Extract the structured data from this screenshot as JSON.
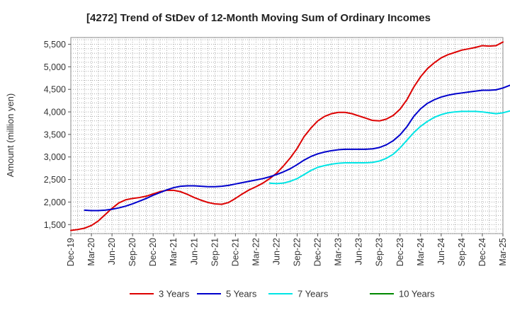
{
  "chart_data": {
    "type": "line",
    "title": "[4272]  Trend of StDev of 12-Month Moving Sum of Ordinary Incomes",
    "xlabel": "",
    "ylabel": "Amount (million yen)",
    "ylim": [
      1300,
      5650
    ],
    "yticks": [
      1500,
      2000,
      2500,
      3000,
      3500,
      4000,
      4500,
      5000,
      5500
    ],
    "ytick_labels": [
      "1,500",
      "2,000",
      "2,500",
      "3,000",
      "3,500",
      "4,000",
      "4,500",
      "5,000",
      "5,500"
    ],
    "x_range_months": [
      0,
      63
    ],
    "xticks": [
      0,
      3,
      6,
      9,
      12,
      15,
      18,
      21,
      24,
      27,
      30,
      33,
      36,
      39,
      42,
      45,
      48,
      51,
      54,
      57,
      60,
      63
    ],
    "xtick_labels": [
      "Dec-19",
      "Mar-20",
      "Jun-20",
      "Sep-20",
      "Dec-20",
      "Mar-21",
      "Jun-21",
      "Sep-21",
      "Dec-21",
      "Mar-22",
      "Jun-22",
      "Sep-22",
      "Dec-22",
      "Mar-23",
      "Jun-23",
      "Sep-23",
      "Dec-23",
      "Mar-24",
      "Jun-24",
      "Sep-24",
      "Dec-24",
      "Mar-25"
    ],
    "grid": true,
    "legend_position": "bottom",
    "series": [
      {
        "name": "3 Years",
        "color": "#dd0000",
        "start_month": 0,
        "values": [
          1370,
          1390,
          1420,
          1480,
          1580,
          1720,
          1860,
          1980,
          2050,
          2080,
          2100,
          2130,
          2180,
          2230,
          2260,
          2260,
          2230,
          2170,
          2100,
          2040,
          1990,
          1960,
          1950,
          1990,
          2080,
          2180,
          2270,
          2340,
          2420,
          2520,
          2640,
          2800,
          2980,
          3190,
          3450,
          3640,
          3800,
          3900,
          3960,
          3990,
          3990,
          3960,
          3910,
          3860,
          3810,
          3800,
          3840,
          3920,
          4060,
          4270,
          4550,
          4780,
          4960,
          5090,
          5200,
          5270,
          5320,
          5370,
          5400,
          5430,
          5470,
          5460,
          5470,
          5550
        ]
      },
      {
        "name": "5 Years",
        "color": "#0000cc",
        "start_month": 2,
        "values": [
          1820,
          1810,
          1810,
          1820,
          1840,
          1870,
          1910,
          1960,
          2020,
          2080,
          2150,
          2210,
          2270,
          2320,
          2350,
          2360,
          2360,
          2350,
          2340,
          2340,
          2350,
          2370,
          2400,
          2430,
          2460,
          2490,
          2520,
          2560,
          2610,
          2670,
          2740,
          2830,
          2930,
          3010,
          3070,
          3110,
          3140,
          3160,
          3170,
          3170,
          3170,
          3170,
          3180,
          3210,
          3270,
          3360,
          3490,
          3670,
          3900,
          4070,
          4190,
          4270,
          4330,
          4370,
          4400,
          4420,
          4440,
          4460,
          4480,
          4480,
          4490,
          4530,
          4590
        ]
      },
      {
        "name": "7 Years",
        "color": "#00e5e5",
        "start_month": 29,
        "values": [
          2420,
          2410,
          2420,
          2460,
          2520,
          2610,
          2700,
          2770,
          2810,
          2840,
          2860,
          2870,
          2870,
          2870,
          2870,
          2880,
          2910,
          2970,
          3060,
          3200,
          3370,
          3540,
          3680,
          3790,
          3880,
          3940,
          3980,
          4000,
          4010,
          4010,
          4010,
          4000,
          3980,
          3960,
          3980,
          4020
        ]
      },
      {
        "name": "10 Years",
        "color": "#008800",
        "start_month": 0,
        "values": []
      }
    ]
  }
}
